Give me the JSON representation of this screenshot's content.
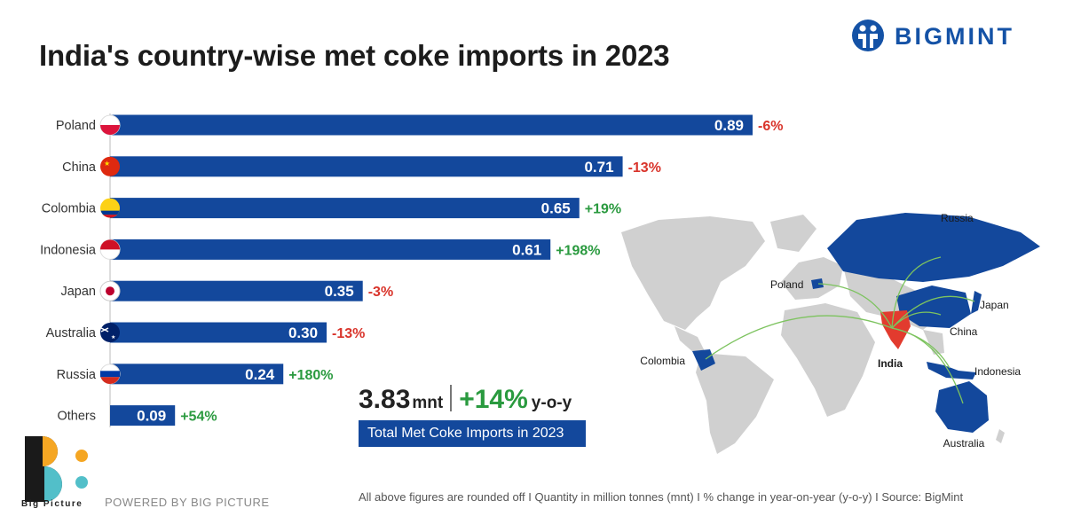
{
  "title": "India's country-wise met coke imports in 2023",
  "brand": {
    "name": "BIGMINT"
  },
  "chart_data": {
    "type": "bar",
    "orientation": "horizontal",
    "title": "India's country-wise met coke imports in 2023",
    "categories": [
      "Poland",
      "China",
      "Colombia",
      "Indonesia",
      "Japan",
      "Australia",
      "Russia",
      "Others"
    ],
    "values": [
      0.89,
      0.71,
      0.65,
      0.61,
      0.35,
      0.3,
      0.24,
      0.09
    ],
    "value_labels": [
      "0.89",
      "0.71",
      "0.65",
      "0.61",
      "0.35",
      "0.30",
      "0.24",
      "0.09"
    ],
    "changes": [
      "-6%",
      "-13%",
      "+19%",
      "+198%",
      "-3%",
      "-13%",
      "+180%",
      "+54%"
    ],
    "xlim": [
      0,
      0.89
    ],
    "grid": false,
    "colors": {
      "bar": "#13489c",
      "negative": "#d9342b",
      "positive": "#2a9a3f"
    }
  },
  "flags": [
    "poland-flag-icon",
    "china-flag-icon",
    "colombia-flag-icon",
    "indonesia-flag-icon",
    "japan-flag-icon",
    "australia-flag-icon",
    "russia-flag-icon"
  ],
  "summary": {
    "total": "3.83",
    "unit": "mnt",
    "change": "+14%",
    "change_suffix": "y-o-y",
    "caption": "Total Met Coke Imports in 2023"
  },
  "map": {
    "labels": [
      "Russia",
      "Poland",
      "Japan",
      "China",
      "India",
      "Colombia",
      "Indonesia",
      "Australia"
    ],
    "colors": {
      "source": "#13489c",
      "india": "#e23b2e",
      "land": "#d0d0d0",
      "flow": "#7dc35f"
    }
  },
  "footer": {
    "logo_caption": "Big Picture",
    "powered": "POWERED BY BIG PICTURE",
    "note": "All above figures are rounded off  I  Quantity in million tonnes (mnt)  I  % change in year-on-year (y-o-y)  I  Source: BigMint"
  }
}
